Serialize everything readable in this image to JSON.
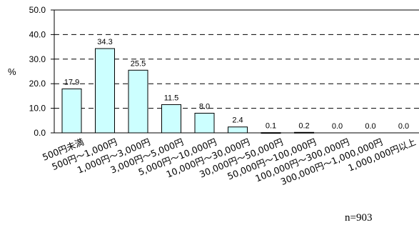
{
  "chart_data": {
    "type": "bar",
    "ylabel": "%",
    "ylim": [
      0,
      50
    ],
    "yticks": [
      "0.0",
      "10.0",
      "20.0",
      "30.0",
      "40.0",
      "50.0"
    ],
    "categories": [
      "500円未満",
      "500円～1,000円",
      "1,000円～3,000円",
      "3,000円～5,000円",
      "5,000円～10,000円",
      "10,000円～30,000円",
      "30,000円～50,000円",
      "50,000円～100,000円",
      "100,000円～300,000円",
      "300,000円～1,000,000円",
      "1,000,000円以上"
    ],
    "values": [
      17.9,
      34.3,
      25.5,
      11.5,
      8.0,
      2.4,
      0.1,
      0.2,
      0.0,
      0.0,
      0.0
    ],
    "value_labels": [
      "17.9",
      "34.3",
      "25.5",
      "11.5",
      "8.0",
      "2.4",
      "0.1",
      "0.2",
      "0.0",
      "0.0",
      "0.0"
    ],
    "grid": "horizontal-dashed",
    "bar_color": "#ccffff",
    "bar_edge_color": "#000000",
    "note": "n=903"
  }
}
